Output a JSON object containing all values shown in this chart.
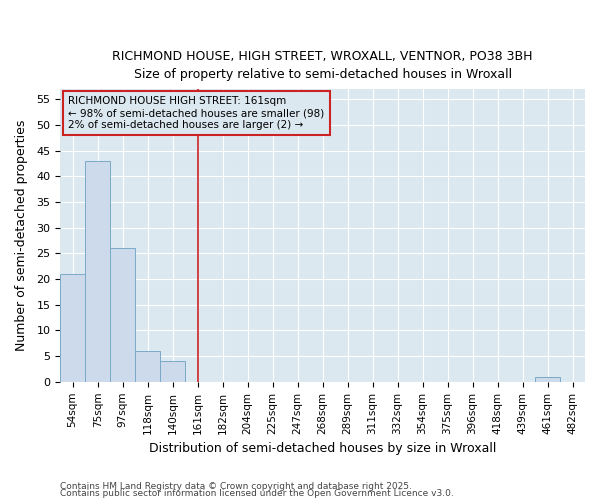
{
  "title1": "RICHMOND HOUSE, HIGH STREET, WROXALL, VENTNOR, PO38 3BH",
  "title2": "Size of property relative to semi-detached houses in Wroxall",
  "xlabel": "Distribution of semi-detached houses by size in Wroxall",
  "ylabel": "Number of semi-detached properties",
  "categories": [
    "54sqm",
    "75sqm",
    "97sqm",
    "118sqm",
    "140sqm",
    "161sqm",
    "182sqm",
    "204sqm",
    "225sqm",
    "247sqm",
    "268sqm",
    "289sqm",
    "311sqm",
    "332sqm",
    "354sqm",
    "375sqm",
    "396sqm",
    "418sqm",
    "439sqm",
    "461sqm",
    "482sqm"
  ],
  "values": [
    21,
    43,
    26,
    6,
    4,
    0,
    0,
    0,
    0,
    0,
    0,
    0,
    0,
    0,
    0,
    0,
    0,
    0,
    0,
    1,
    0
  ],
  "bar_color": "#ccdaeb",
  "bar_edge_color": "#7aaac8",
  "marker_index": 5,
  "marker_color": "#cc2222",
  "ylim": [
    0,
    57
  ],
  "yticks": [
    0,
    5,
    10,
    15,
    20,
    25,
    30,
    35,
    40,
    45,
    50,
    55
  ],
  "annotation_title": "RICHMOND HOUSE HIGH STREET: 161sqm",
  "annotation_line1": "← 98% of semi-detached houses are smaller (98)",
  "annotation_line2": "2% of semi-detached houses are larger (2) →",
  "annotation_box_color": "#cc2222",
  "footer1": "Contains HM Land Registry data © Crown copyright and database right 2025.",
  "footer2": "Contains public sector information licensed under the Open Government Licence v3.0.",
  "bg_color": "#ffffff",
  "plot_bg_color": "#dce8f0"
}
